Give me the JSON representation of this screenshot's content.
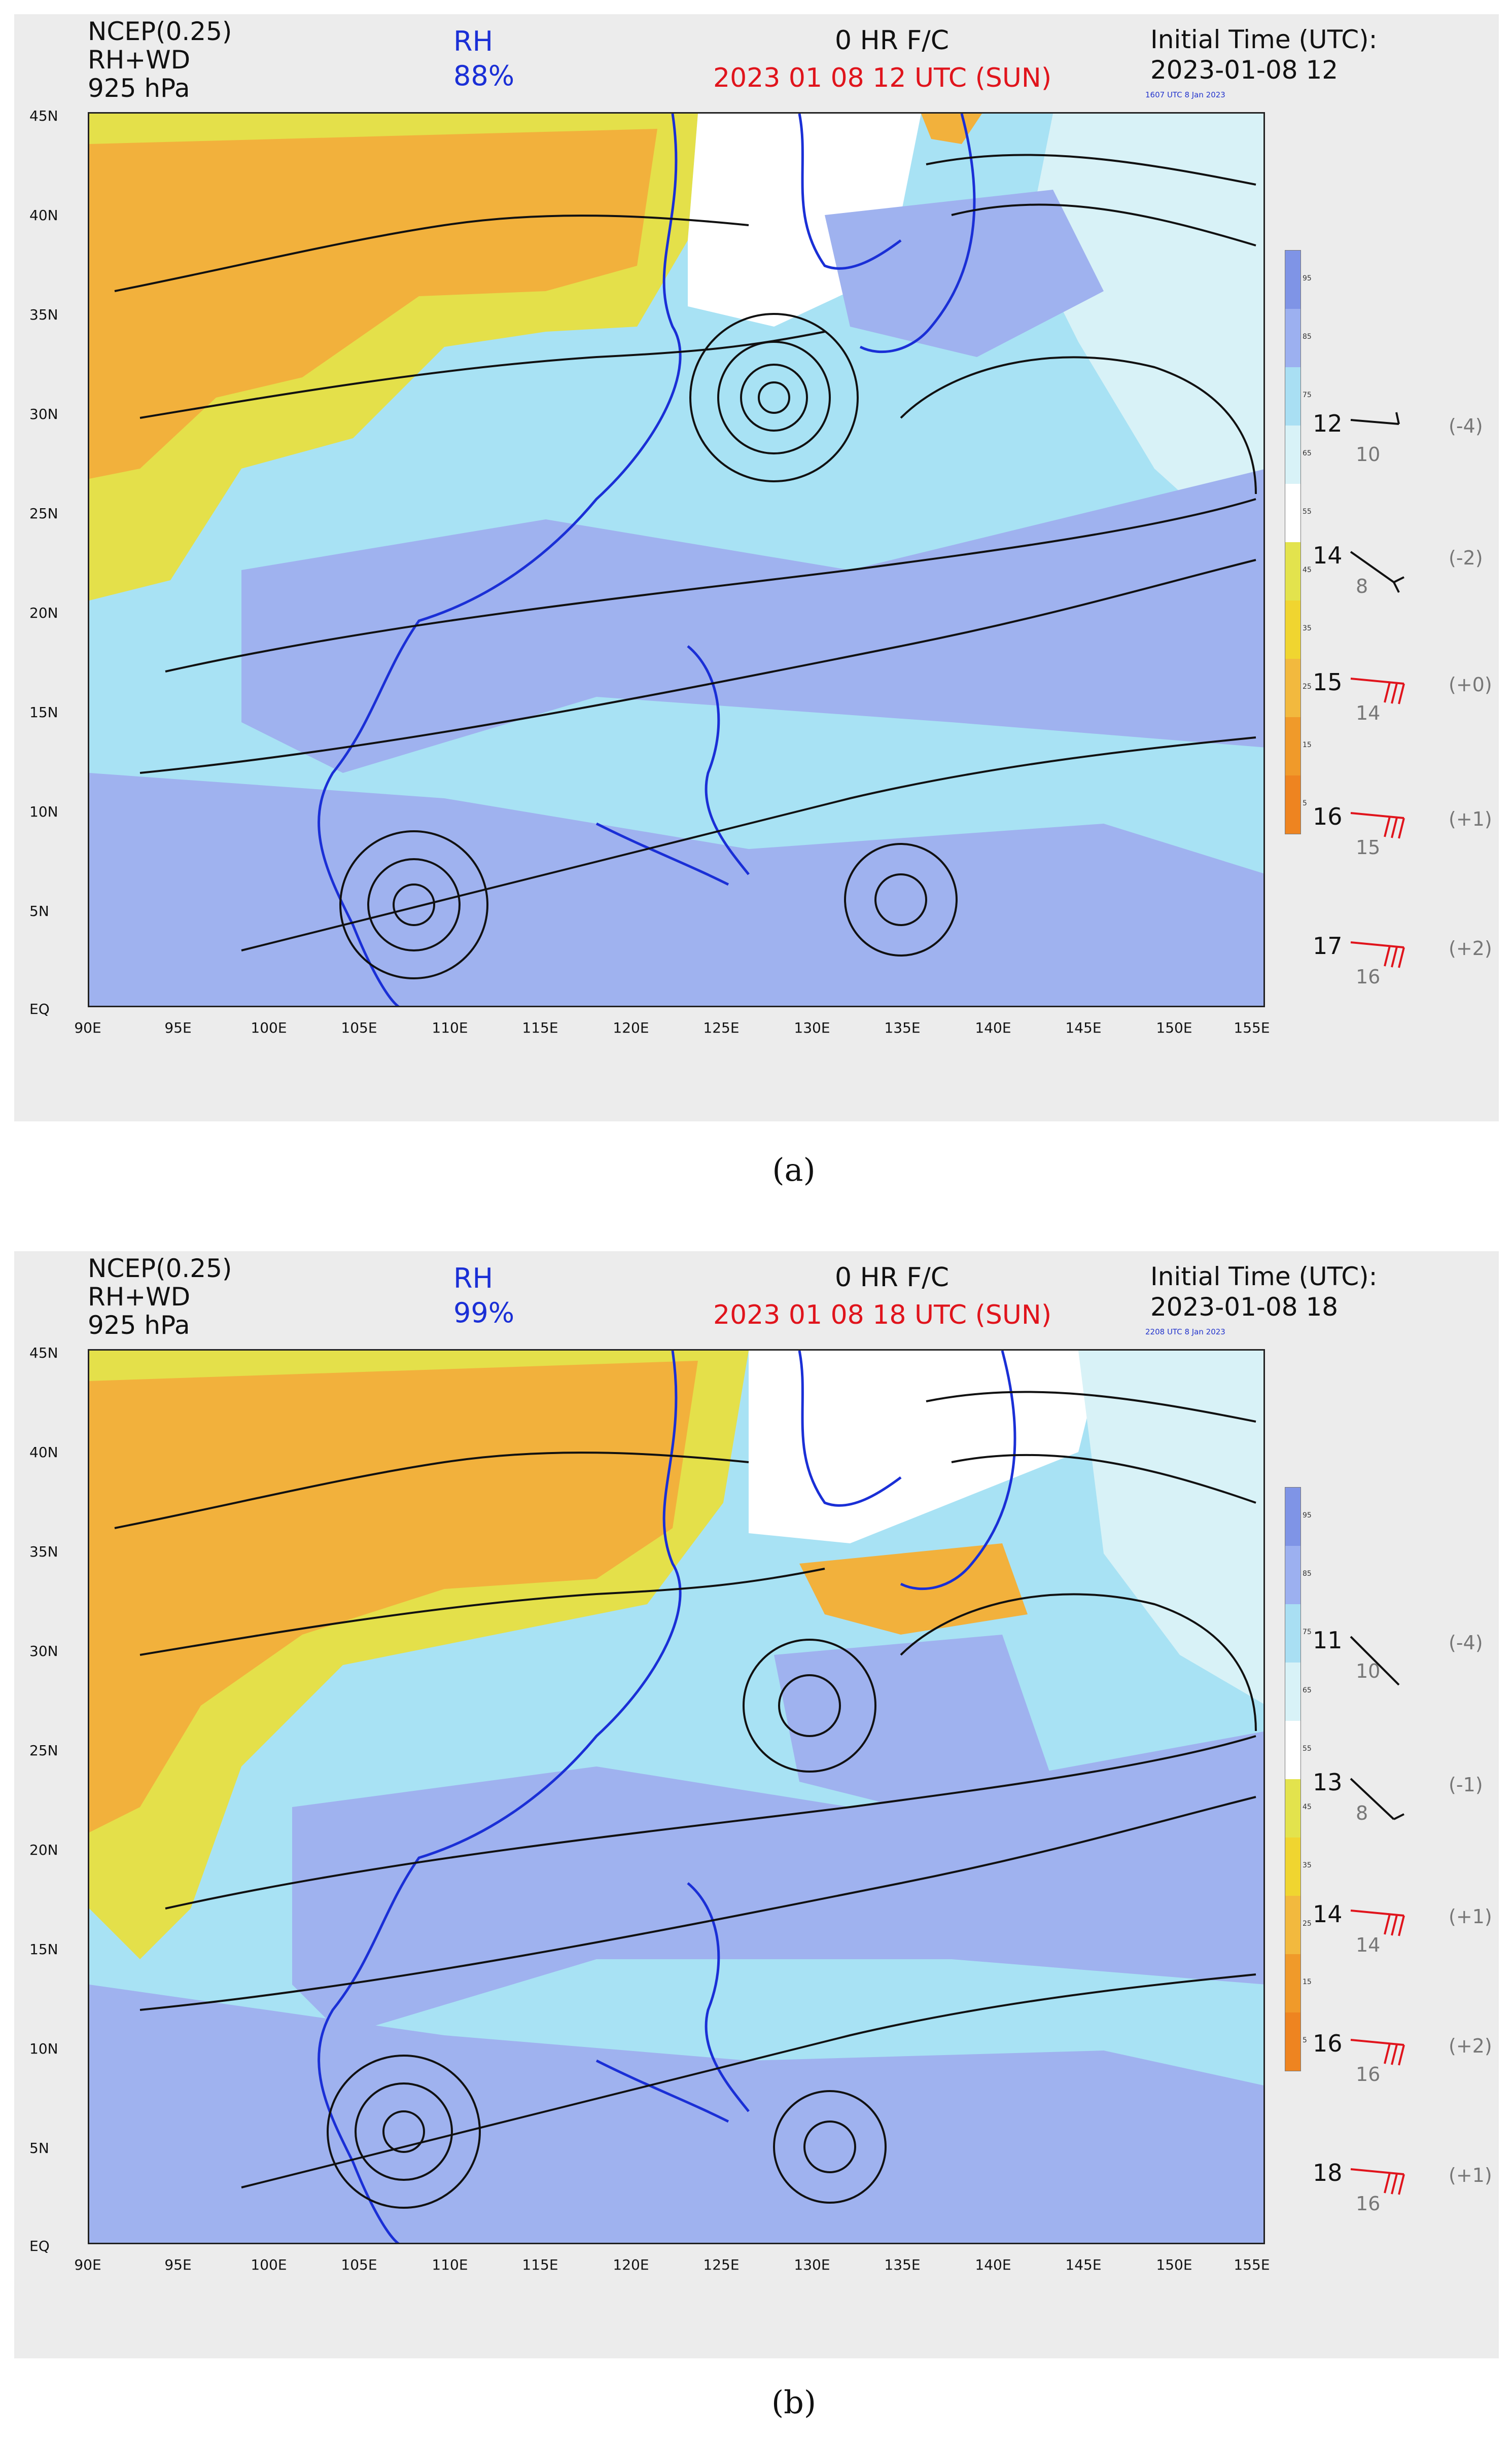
{
  "panels": [
    {
      "id": "a",
      "header": {
        "source": "NCEP(0.25)",
        "fields": "RH+WD",
        "level": "925 hPa",
        "variable": "RH",
        "variable_value": "88%",
        "forecast": "0 HR F/C",
        "valid_time": "2023 01 08  12 UTC (SUN)",
        "init_label": "Initial Time (UTC):",
        "init_time": "2023-01-08  12",
        "stamp": "1607 UTC  8 Jan 2023"
      },
      "legend": [
        {
          "speed": "12",
          "sub": "10",
          "change": "(-4)",
          "color": "#111111"
        },
        {
          "speed": "14",
          "sub": "8",
          "change": "(-2)",
          "color": "#111111"
        },
        {
          "speed": "15",
          "sub": "14",
          "change": "(+0)",
          "color": "#e0141c"
        },
        {
          "speed": "16",
          "sub": "15",
          "change": "(+1)",
          "color": "#e0141c"
        },
        {
          "speed": "17",
          "sub": "16",
          "change": "(+2)",
          "color": "#e0141c"
        }
      ],
      "caption": "(a)"
    },
    {
      "id": "b",
      "header": {
        "source": "NCEP(0.25)",
        "fields": "RH+WD",
        "level": "925 hPa",
        "variable": "RH",
        "variable_value": "99%",
        "forecast": "0 HR F/C",
        "valid_time": "2023 01 08  18 UTC (SUN)",
        "init_label": "Initial Time (UTC):",
        "init_time": "2023-01-08  18",
        "stamp": "2208 UTC  8 Jan 2023"
      },
      "legend": [
        {
          "speed": "11",
          "sub": "10",
          "change": "(-4)",
          "color": "#111111"
        },
        {
          "speed": "13",
          "sub": "8",
          "change": "(-1)",
          "color": "#111111"
        },
        {
          "speed": "14",
          "sub": "14",
          "change": "(+1)",
          "color": "#e0141c"
        },
        {
          "speed": "16",
          "sub": "16",
          "change": "(+2)",
          "color": "#e0141c"
        },
        {
          "speed": "18",
          "sub": "16",
          "change": "(+1)",
          "color": "#e0141c"
        }
      ],
      "caption": "(b)"
    }
  ],
  "axes": {
    "lat_ticks": [
      "45N",
      "40N",
      "35N",
      "30N",
      "25N",
      "20N",
      "15N",
      "10N",
      "5N",
      "EQ"
    ],
    "lon_ticks": [
      "90E",
      "95E",
      "100E",
      "105E",
      "110E",
      "115E",
      "120E",
      "125E",
      "130E",
      "135E",
      "140E",
      "145E",
      "150E",
      "155E"
    ]
  },
  "colorbar": {
    "labels": [
      "95",
      "85",
      "75",
      "65",
      "55",
      "45",
      "35",
      "25",
      "15",
      "5"
    ],
    "colors": [
      "#7f94e6",
      "#9cb0f0",
      "#a9dff3",
      "#d8f2f7",
      "#ffffff",
      "#e3e34d",
      "#f0d530",
      "#f2b93e",
      "#f09a2a",
      "#ee8420"
    ]
  },
  "map_colors": {
    "moist": "#9fb2ef",
    "moist_light": "#a8e2f4",
    "dry": "#f2b13c",
    "dry_light": "#e4e04a",
    "coast": "#1a2fd6",
    "streamline": "#111111"
  }
}
